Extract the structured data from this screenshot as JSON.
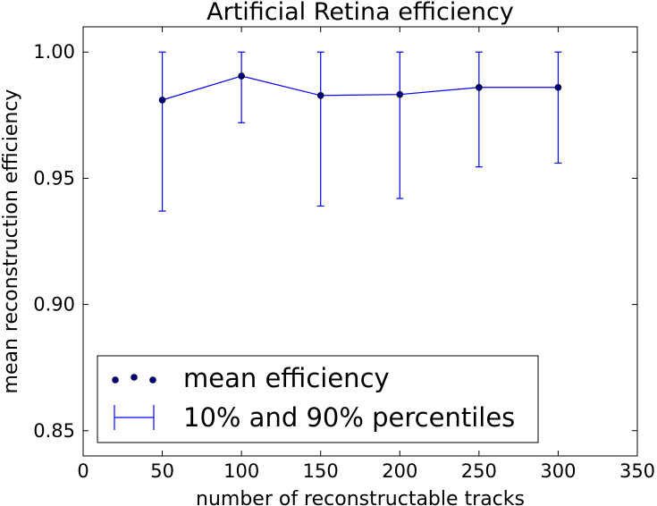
{
  "chart_data": {
    "type": "line",
    "title": "Artificial Retina efficiency",
    "xlabel": "number of reconstructable tracks",
    "ylabel": "mean reconstruction efficiency",
    "xlim": [
      0,
      350
    ],
    "ylim": [
      0.84,
      1.01
    ],
    "xticks": [
      0,
      50,
      100,
      150,
      200,
      250,
      300,
      350
    ],
    "xtick_labels": [
      "0",
      "50",
      "100",
      "150",
      "200",
      "250",
      "300",
      "350"
    ],
    "yticks": [
      0.85,
      0.9,
      0.95,
      1.0
    ],
    "ytick_labels": [
      "0.85",
      "0.90",
      "0.95",
      "1.00"
    ],
    "grid": false,
    "legend_position": "bottom-left",
    "series": [
      {
        "name": "mean efficiency",
        "x": [
          50,
          100,
          150,
          200,
          250,
          300
        ],
        "values": [
          0.981,
          0.9905,
          0.9828,
          0.9832,
          0.986,
          0.986
        ],
        "low": [
          0.937,
          0.972,
          0.939,
          0.942,
          0.9545,
          0.956
        ],
        "high": [
          1.0,
          1.0,
          1.0,
          1.0,
          1.0,
          1.0
        ]
      }
    ],
    "legend": [
      {
        "key": "points",
        "label": "mean efficiency"
      },
      {
        "key": "errorbar",
        "label": "10% and 90% percentiles"
      }
    ],
    "color": "#0000ff",
    "marker_fill": "#00007f"
  }
}
